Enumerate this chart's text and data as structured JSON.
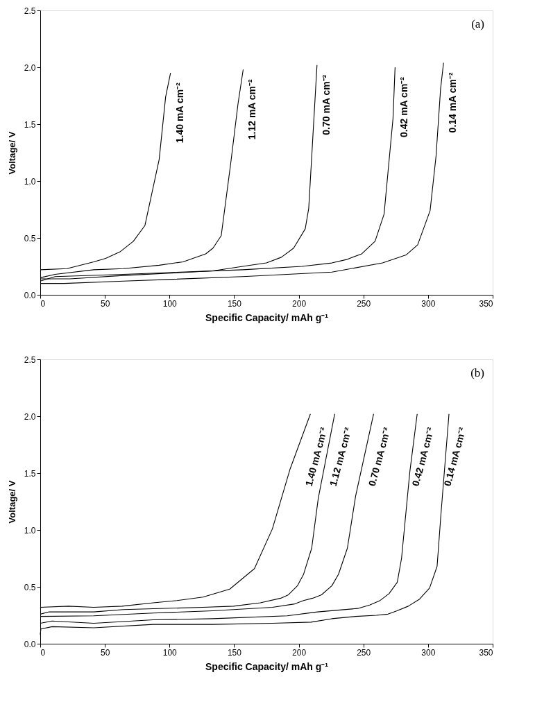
{
  "chart_data": [
    {
      "type": "line",
      "xlabel": "Specific Capacity/ mAh g⁻¹",
      "ylabel": "Voltage/ V",
      "xlim": [
        0,
        350
      ],
      "xticks": [
        0,
        50,
        100,
        150,
        200,
        250,
        300,
        350
      ],
      "ylim": [
        0,
        2.5
      ],
      "yticks": [
        {
          "value": 0,
          "label": "0.0"
        },
        {
          "value": 0.5,
          "label": "0.5"
        },
        {
          "value": 1,
          "label": "1.0"
        },
        {
          "value": 1.5,
          "label": "1.5"
        },
        {
          "value": 2,
          "label": "2.0"
        },
        {
          "value": 2.5,
          "label": "2.5"
        }
      ],
      "grid": false,
      "legend": false,
      "marker": "none",
      "line_style": "solid",
      "series": [
        {
          "name": "1.40 mA cm⁻²",
          "color": "#000000",
          "x": [
            0,
            20.7,
            41.4,
            50.6,
            62,
            72,
            81,
            92,
            97,
            100.8
          ],
          "values": [
            0.22,
            0.23,
            0.29,
            0.32,
            0.38,
            0.47,
            0.61,
            1.19,
            1.74,
            1.95
          ]
        },
        {
          "name": "1.12 mA cm⁻²",
          "color": "#000000",
          "x": [
            0,
            11.5,
            41.4,
            64.5,
            92,
            110.5,
            128,
            133.6,
            140,
            147.4,
            153,
            157
          ],
          "values": [
            0.15,
            0.18,
            0.22,
            0.23,
            0.26,
            0.29,
            0.36,
            0.41,
            0.52,
            1.16,
            1.68,
            1.98
          ]
        },
        {
          "name": "0.70 mA cm⁻²",
          "color": "#000000",
          "x": [
            0,
            23,
            64.5,
            133.6,
            156.6,
            175,
            186.5,
            196,
            205,
            207.7,
            210.7,
            214.1
          ],
          "values": [
            0.14,
            0.14,
            0.17,
            0.21,
            0.25,
            0.28,
            0.33,
            0.41,
            0.58,
            0.76,
            1.35,
            2.02
          ]
        },
        {
          "name": "0.42 mA cm⁻²",
          "color": "#000000",
          "x": [
            0,
            11.5,
            64.5,
            156.6,
            202.5,
            225.6,
            237,
            248.7,
            259,
            266,
            272.9,
            274.5
          ],
          "values": [
            0.12,
            0.16,
            0.18,
            0.22,
            0.25,
            0.28,
            0.31,
            0.36,
            0.47,
            0.71,
            1.55,
            2.0
          ]
        },
        {
          "name": "0.14 mA cm⁻²",
          "color": "#000000",
          "x": [
            0,
            18.4,
            64.5,
            156.6,
            225.6,
            264.8,
            283,
            292,
            301.6,
            306.2,
            309.7,
            312
          ],
          "values": [
            0.1,
            0.1,
            0.12,
            0.16,
            0.2,
            0.28,
            0.35,
            0.44,
            0.74,
            1.22,
            1.81,
            2.04
          ]
        }
      ],
      "annotations": [
        "(a)"
      ]
    },
    {
      "type": "line",
      "xlabel": "Specific Capacity/ mAh g⁻¹",
      "ylabel": "Voltage/ V",
      "xlim": [
        0,
        350
      ],
      "xticks": [
        0,
        50,
        100,
        150,
        200,
        250,
        300,
        350
      ],
      "ylim": [
        0,
        2.5
      ],
      "yticks": [
        {
          "value": 0,
          "label": "0.0"
        },
        {
          "value": 0.5,
          "label": "0.5"
        },
        {
          "value": 1,
          "label": "1.0"
        },
        {
          "value": 1.5,
          "label": "1.5"
        },
        {
          "value": 2,
          "label": "2.0"
        },
        {
          "value": 2.5,
          "label": "2.5"
        }
      ],
      "grid": false,
      "legend": false,
      "marker": "none",
      "line_style": "solid",
      "series": [
        {
          "name": "1.40 mA cm⁻²",
          "color": "#000000",
          "x": [
            0,
            21.9,
            41.4,
            63.3,
            87.5,
            105.8,
            125.9,
            146.6,
            165.7,
            179.6,
            193.4,
            209
          ],
          "values": [
            0.32,
            0.33,
            0.32,
            0.33,
            0.36,
            0.38,
            0.41,
            0.48,
            0.66,
            1.01,
            1.54,
            2.02
          ]
        },
        {
          "name": "1.12 mA cm⁻²",
          "color": "#000000",
          "x": [
            0,
            6.9,
            41.4,
            64.5,
            125.9,
            149.5,
            170.3,
            186,
            192,
            199,
            203.7,
            210,
            215.1,
            227.8
          ],
          "values": [
            0.26,
            0.28,
            0.28,
            0.3,
            0.32,
            0.33,
            0.36,
            0.4,
            0.43,
            0.51,
            0.61,
            0.84,
            1.28,
            2.02
          ]
        },
        {
          "name": "0.70 mA cm⁻²",
          "color": "#000000",
          "x": [
            0,
            41.4,
            87.5,
            133.6,
            179.6,
            196.9,
            203.7,
            210.7,
            217.6,
            225.6,
            230.7,
            237.6,
            244,
            257.9
          ],
          "values": [
            0.24,
            0.245,
            0.27,
            0.29,
            0.32,
            0.35,
            0.38,
            0.4,
            0.43,
            0.51,
            0.61,
            0.84,
            1.3,
            2.02
          ]
        },
        {
          "name": "0.42 mA cm⁻²",
          "color": "#000000",
          "x": [
            0,
            9.2,
            41.4,
            87.5,
            133.6,
            191,
            214.5,
            245.6,
            254.8,
            262.9,
            269.8,
            276.2,
            279.5,
            285.9,
            291.6
          ],
          "values": [
            0.18,
            0.2,
            0.18,
            0.21,
            0.22,
            0.245,
            0.28,
            0.31,
            0.34,
            0.38,
            0.44,
            0.54,
            0.75,
            1.51,
            2.02
          ]
        },
        {
          "name": "0.14 mA cm⁻²",
          "color": "#000000",
          "x": [
            0,
            0.5,
            9.2,
            41.4,
            87.5,
            133.6,
            179.6,
            209.5,
            225.6,
            244,
            260,
            269,
            276,
            284.7,
            293.2,
            301.2,
            307,
            310,
            316.2
          ],
          "values": [
            0.08,
            0.13,
            0.15,
            0.14,
            0.17,
            0.17,
            0.18,
            0.19,
            0.22,
            0.24,
            0.25,
            0.26,
            0.29,
            0.33,
            0.39,
            0.49,
            0.68,
            1.14,
            2.02
          ]
        }
      ],
      "annotations": [
        "(b)"
      ]
    }
  ]
}
